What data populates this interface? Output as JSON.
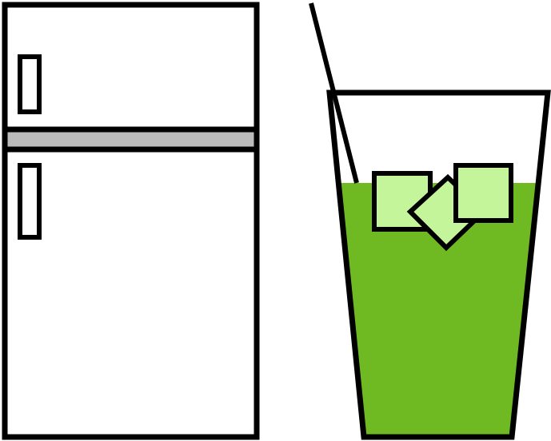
{
  "scene": {
    "background": "#ffffff",
    "items": [
      "refrigerator-icon",
      "iced-drink-icon"
    ]
  },
  "colors": {
    "outline": "#000000",
    "fridge_body": "#ffffff",
    "fridge_divider": "#bbbbbb",
    "drink_liquid": "#6fba22",
    "ice_cube": "#c4f59a"
  },
  "fridge": {
    "icon": "refrigerator-icon",
    "doors": 2,
    "handles": 2
  },
  "drink": {
    "icon": "glass-icon",
    "has_straw": true,
    "ice_cubes": 3
  }
}
